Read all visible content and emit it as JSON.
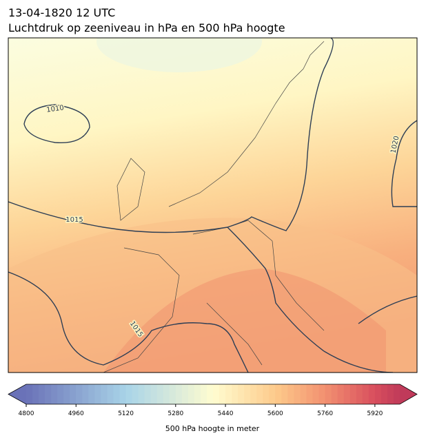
{
  "header": {
    "title": "13-04-1820 12 UTC",
    "subtitle": "Luchtdruk op zeeniveau in hPa en 500 hPa hoogte"
  },
  "isobar_labels": [
    1010,
    1015,
    1020,
    1015
  ],
  "colorbar": {
    "min": 4800,
    "max": 6000,
    "step": 20,
    "ticks": [
      4800,
      4960,
      5120,
      5280,
      5440,
      5600,
      5760,
      5920
    ],
    "label": "500 hPa hoogte in meter"
  }
}
